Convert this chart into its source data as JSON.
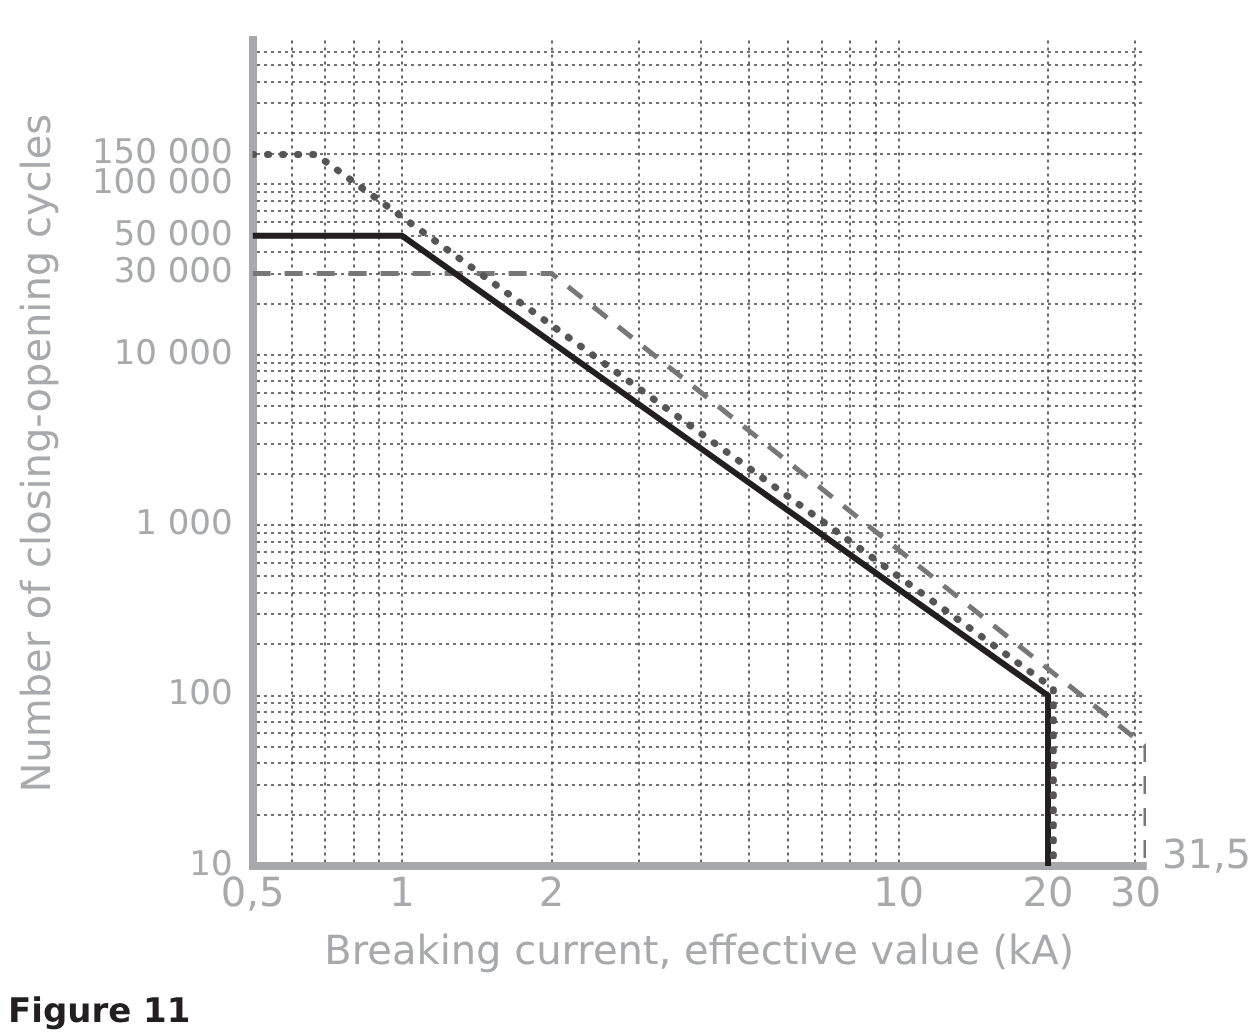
{
  "chart_data": {
    "type": "line",
    "xlabel": "Breaking current, effective value (kA)",
    "ylabel": "Number of closing-opening cycles",
    "log": "xy",
    "grid": true,
    "legend": false,
    "marker": "none",
    "xlim": [
      0.5,
      31.5
    ],
    "ylim": [
      10,
      700000
    ],
    "xticks": [
      {
        "value": 0.5,
        "label": "0,5"
      },
      {
        "value": 0.6,
        "label": null
      },
      {
        "value": 0.7,
        "label": null
      },
      {
        "value": 0.8,
        "label": null
      },
      {
        "value": 0.9,
        "label": null
      },
      1,
      2,
      {
        "value": 3,
        "label": null
      },
      {
        "value": 4,
        "label": null
      },
      {
        "value": 5,
        "label": null
      },
      {
        "value": 6,
        "label": null
      },
      {
        "value": 7,
        "label": null
      },
      {
        "value": 8,
        "label": null
      },
      {
        "value": 9,
        "label": null
      },
      10,
      20,
      30
    ],
    "yticks": [
      10,
      {
        "value": 20,
        "label": null
      },
      {
        "value": 30,
        "label": null
      },
      {
        "value": 40,
        "label": null
      },
      {
        "value": 50,
        "label": null
      },
      {
        "value": 60,
        "label": null
      },
      {
        "value": 70,
        "label": null
      },
      {
        "value": 80,
        "label": null
      },
      {
        "value": 90,
        "label": null
      },
      100,
      {
        "value": 200,
        "label": null
      },
      {
        "value": 300,
        "label": null
      },
      {
        "value": 400,
        "label": null
      },
      {
        "value": 500,
        "label": null
      },
      {
        "value": 600,
        "label": null
      },
      {
        "value": 700,
        "label": null
      },
      {
        "value": 800,
        "label": null
      },
      {
        "value": 900,
        "label": null
      },
      {
        "value": 1000,
        "label": "1 000"
      },
      {
        "value": 2000,
        "label": null
      },
      {
        "value": 3000,
        "label": null
      },
      {
        "value": 4000,
        "label": null
      },
      {
        "value": 5000,
        "label": null
      },
      {
        "value": 6000,
        "label": null
      },
      {
        "value": 7000,
        "label": null
      },
      {
        "value": 8000,
        "label": null
      },
      {
        "value": 9000,
        "label": null
      },
      {
        "value": 10000,
        "label": "10 000"
      },
      {
        "value": 20000,
        "label": null
      },
      {
        "value": 30000,
        "label": "30 000"
      },
      {
        "value": 40000,
        "label": null
      },
      {
        "value": 50000,
        "label": "50 000"
      },
      {
        "value": 60000,
        "label": null
      },
      {
        "value": 70000,
        "label": null
      },
      {
        "value": 80000,
        "label": null
      },
      {
        "value": 90000,
        "label": null
      },
      {
        "value": 100000,
        "label": "100 000"
      },
      {
        "value": 150000,
        "label": "150 000"
      },
      {
        "value": 200000,
        "label": null
      },
      {
        "value": 300000,
        "label": null
      },
      {
        "value": 400000,
        "label": null
      },
      {
        "value": 500000,
        "label": null
      },
      {
        "value": 600000,
        "label": null
      }
    ],
    "series": [
      {
        "color": "#555555",
        "line_style": "dotted",
        "x": [
          0.5,
          0.67,
          20.5,
          20.5
        ],
        "values": [
          150000,
          150000,
          110,
          10
        ]
      },
      {
        "color": "#231f20",
        "line_style": "solid",
        "x": [
          0.5,
          1,
          20,
          20
        ],
        "values": [
          50000,
          50000,
          100,
          10
        ]
      },
      {
        "color": "#777777",
        "line_style": "dashed",
        "x": [
          0.5,
          2,
          31.5,
          31.5
        ],
        "values": [
          30000,
          30000,
          50,
          10
        ]
      }
    ],
    "annotations": [
      {
        "text": "31,5",
        "x": 31.5,
        "y": 10
      },
      "Figure 11"
    ]
  }
}
